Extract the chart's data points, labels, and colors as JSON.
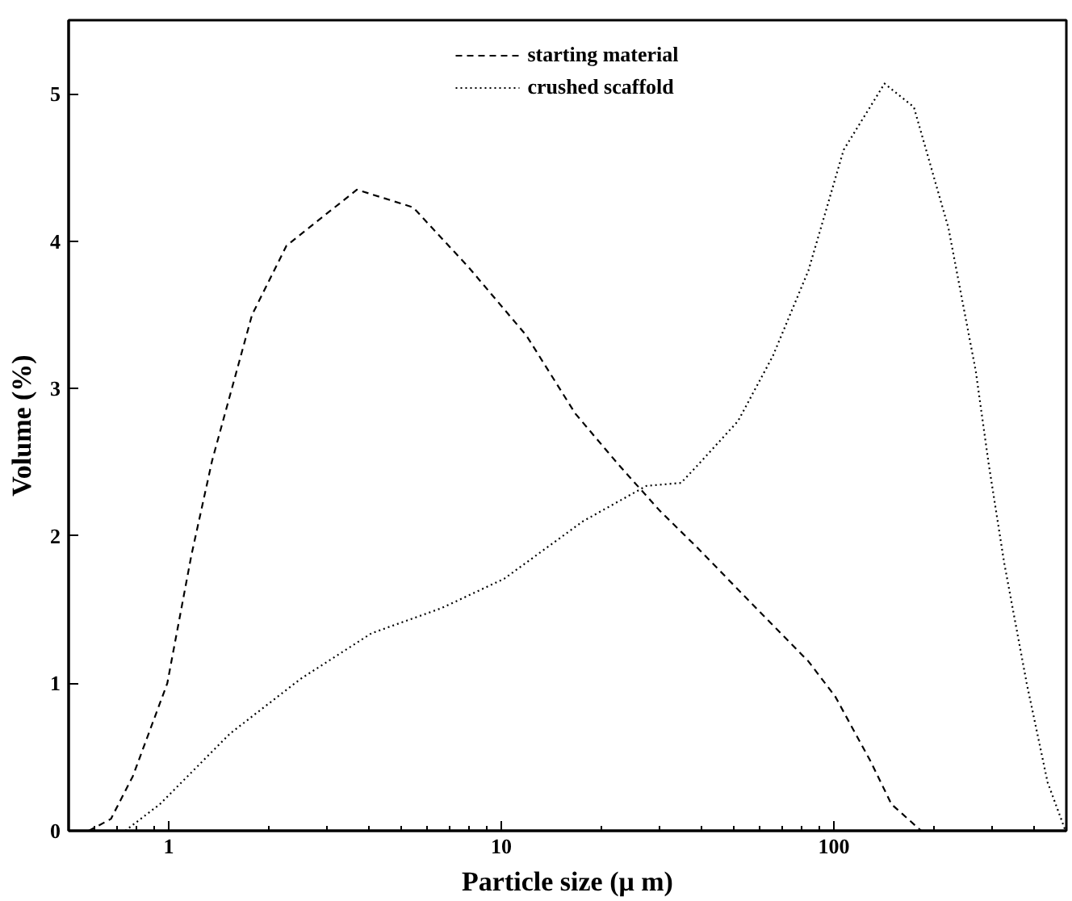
{
  "chart_data": {
    "type": "line",
    "xlabel": "Particle size (μ m)",
    "ylabel": "Volume (%)",
    "log": "x",
    "xlim": [
      0.5,
      500
    ],
    "xticks": [
      1,
      10,
      100
    ],
    "ylim": [
      0,
      5.5
    ],
    "yticks": [
      0,
      1,
      2,
      3,
      4,
      5
    ],
    "grid": false,
    "legend": "top",
    "series": [
      {
        "name": "starting material",
        "color": "#000000",
        "line_style": "dashed",
        "x": [
          0.575,
          0.67,
          0.78,
          0.99,
          1.17,
          1.35,
          1.78,
          2.26,
          3.68,
          5.43,
          8.0,
          11.9,
          16.7,
          22.4,
          30,
          38.5,
          56.7,
          83.8,
          101,
          129,
          149,
          183
        ],
        "values": [
          0,
          0.08,
          0.37,
          1.0,
          1.87,
          2.51,
          3.5,
          3.97,
          4.35,
          4.23,
          3.82,
          3.36,
          2.83,
          2.49,
          2.17,
          1.93,
          1.54,
          1.15,
          0.91,
          0.47,
          0.18,
          0
        ]
      },
      {
        "name": "crushed scaffold",
        "color": "#000000",
        "line_style": "dotted",
        "x": [
          0.74,
          0.94,
          1.53,
          2.49,
          4.07,
          6.6,
          10.2,
          17.6,
          27.3,
          34.7,
          39.3,
          51.5,
          65.5,
          83.8,
          107,
          142,
          174,
          221,
          267,
          292,
          325,
          380,
          439,
          497
        ],
        "values": [
          0,
          0.18,
          0.66,
          1.03,
          1.34,
          1.51,
          1.71,
          2.1,
          2.34,
          2.36,
          2.49,
          2.78,
          3.22,
          3.8,
          4.62,
          5.07,
          4.91,
          4.09,
          3.12,
          2.49,
          1.82,
          1.0,
          0.33,
          0
        ]
      }
    ]
  }
}
